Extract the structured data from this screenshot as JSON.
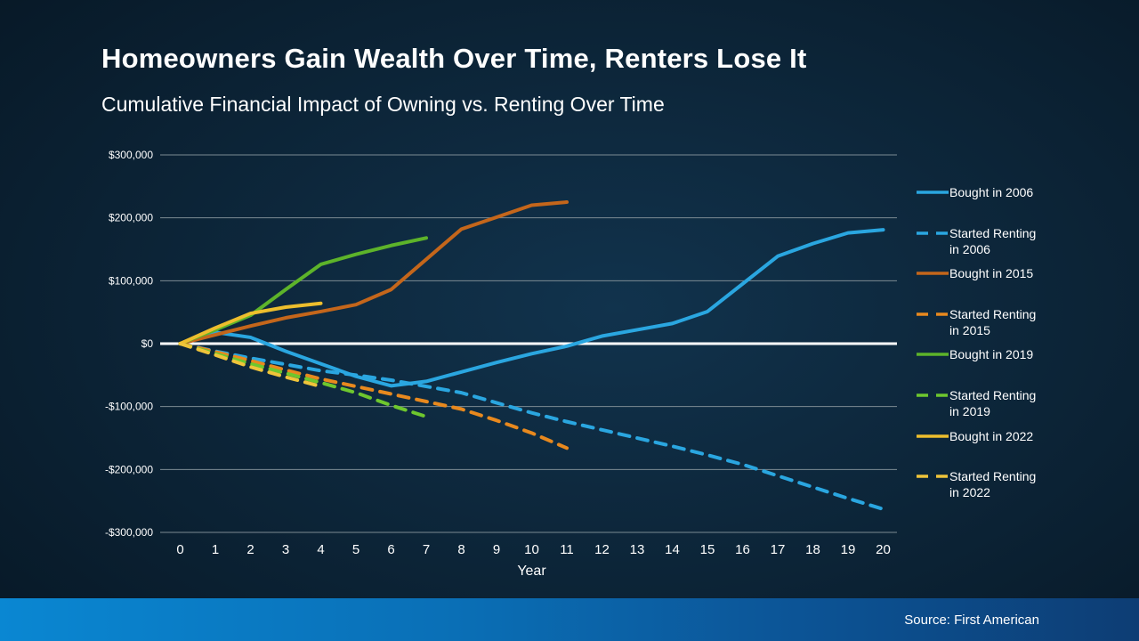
{
  "header": {
    "title": "Homeowners Gain Wealth Over Time, Renters Lose It",
    "subtitle": "Cumulative Financial Impact of Owning vs. Renting Over Time"
  },
  "footer": {
    "source": "Source: First American"
  },
  "colors": {
    "background": "#0c2437",
    "gridline": "#7c8b93",
    "zero_line": "#ffffff",
    "footer_bar_left": "#0a87d2",
    "footer_bar_right": "#0d3d74",
    "text": "#ffffff"
  },
  "chart_data": {
    "type": "line",
    "title": "Cumulative Financial Impact of Owning vs. Renting Over Time",
    "xlabel": "Year",
    "ylabel": "",
    "xlim": [
      0,
      20
    ],
    "ylim": [
      -300000,
      300000
    ],
    "grid": true,
    "zero_line_emphasized": true,
    "legend_position": "right",
    "x_ticks": [
      0,
      1,
      2,
      3,
      4,
      5,
      6,
      7,
      8,
      9,
      10,
      11,
      12,
      13,
      14,
      15,
      16,
      17,
      18,
      19,
      20
    ],
    "y_ticks": [
      {
        "value": 300000,
        "label": "$300,000"
      },
      {
        "value": 200000,
        "label": "$200,000"
      },
      {
        "value": 100000,
        "label": "$100,000"
      },
      {
        "value": 0,
        "label": "$0"
      },
      {
        "value": -100000,
        "label": "-$100,000"
      },
      {
        "value": -200000,
        "label": "-$200,000"
      },
      {
        "value": -300000,
        "label": "-$300,000"
      }
    ],
    "series": [
      {
        "name": "Bought in 2006",
        "color": "#2aa6e0",
        "style": "solid",
        "x": [
          0,
          1,
          2,
          3,
          4,
          5,
          6,
          7,
          8,
          9,
          10,
          11,
          12,
          13,
          14,
          15,
          16,
          17,
          18,
          19,
          20
        ],
        "y": [
          0,
          18000,
          10000,
          -12000,
          -32000,
          -52000,
          -67000,
          -60000,
          -45000,
          -30000,
          -16000,
          -4000,
          12000,
          22000,
          32000,
          51000,
          95000,
          139000,
          159000,
          176000,
          181000
        ]
      },
      {
        "name": "Started Renting in 2006",
        "color": "#2aa6e0",
        "style": "dashed",
        "x": [
          0,
          1,
          2,
          3,
          4,
          5,
          6,
          7,
          8,
          9,
          10,
          11,
          12,
          13,
          14,
          15,
          16,
          17,
          18,
          19,
          20
        ],
        "y": [
          0,
          -12000,
          -23000,
          -33000,
          -43000,
          -50000,
          -58000,
          -68000,
          -78000,
          -94000,
          -110000,
          -124000,
          -137000,
          -150000,
          -163000,
          -177000,
          -192000,
          -210000,
          -228000,
          -246000,
          -263000
        ]
      },
      {
        "name": "Bought in 2015",
        "color": "#c4661b",
        "style": "solid",
        "x": [
          0,
          1,
          2,
          3,
          4,
          5,
          6,
          7,
          8,
          9,
          10,
          11
        ],
        "y": [
          0,
          14000,
          28000,
          41000,
          51000,
          62000,
          86000,
          134000,
          182000,
          201000,
          220000,
          225000
        ]
      },
      {
        "name": "Started Renting in 2015",
        "color": "#e8891e",
        "style": "dashed",
        "x": [
          0,
          1,
          2,
          3,
          4,
          5,
          6,
          7,
          8,
          9,
          10,
          11
        ],
        "y": [
          0,
          -13000,
          -27000,
          -42000,
          -56000,
          -68000,
          -80000,
          -92000,
          -104000,
          -122000,
          -142000,
          -166000
        ]
      },
      {
        "name": "Bought in 2019",
        "color": "#5db32a",
        "style": "solid",
        "x": [
          0,
          1,
          2,
          3,
          4,
          5,
          6,
          7
        ],
        "y": [
          0,
          22000,
          45000,
          86000,
          126000,
          142000,
          156000,
          168000
        ]
      },
      {
        "name": "Started Renting in 2019",
        "color": "#6ec72e",
        "style": "dashed",
        "x": [
          0,
          1,
          2,
          3,
          4,
          5,
          6,
          7
        ],
        "y": [
          0,
          -16000,
          -32000,
          -47000,
          -62000,
          -78000,
          -98000,
          -116000
        ]
      },
      {
        "name": "Bought in 2022",
        "color": "#edbe2d",
        "style": "solid",
        "x": [
          0,
          1,
          2,
          3,
          4
        ],
        "y": [
          0,
          25000,
          48000,
          58000,
          64000
        ]
      },
      {
        "name": "Started Renting in 2022",
        "color": "#efc43a",
        "style": "dashed",
        "x": [
          0,
          1,
          2,
          3,
          4
        ],
        "y": [
          0,
          -18000,
          -37000,
          -53000,
          -68000
        ]
      }
    ]
  }
}
